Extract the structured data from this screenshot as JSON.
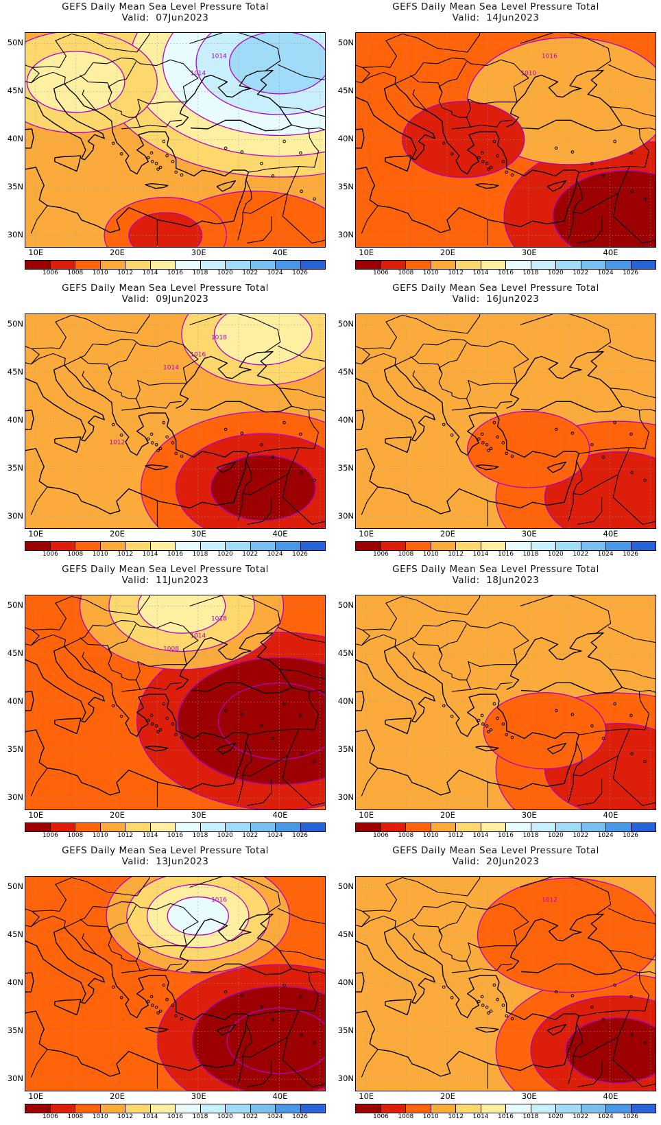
{
  "figure": {
    "title_line": "GEFS Daily Mean Sea Level Pressure Total",
    "valid_prefix": "Valid:",
    "lat_labels": [
      "50N",
      "45N",
      "40N",
      "35N",
      "30N"
    ],
    "lon_labels": [
      "10E",
      "20E",
      "30E",
      "40E"
    ],
    "colorbar": {
      "levels": [
        "1006",
        "1008",
        "1010",
        "1012",
        "1014",
        "1016",
        "1018",
        "1020",
        "1022",
        "1024",
        "1026"
      ],
      "colors": [
        "#9c0000",
        "#dc1e0a",
        "#ff640a",
        "#fbaa3c",
        "#fdd86c",
        "#fef0a0",
        "#e8fbff",
        "#c8f0fc",
        "#a0dcf8",
        "#78c0f0",
        "#4a98e8",
        "#2864d8"
      ]
    },
    "contour_color": "#b000c8"
  },
  "panels": [
    {
      "date": "07Jun2023",
      "labels": [
        "1014",
        "1014"
      ],
      "base": 3,
      "blobs": [
        [
          37,
          28,
          10,
          0.1
        ],
        [
          26,
          30,
          6,
          0.18
        ],
        [
          40,
          48,
          18,
          -0.45
        ],
        [
          15,
          46,
          8,
          -0.18
        ]
      ]
    },
    {
      "date": "14Jun2023",
      "labels": [
        "1016",
        "1010"
      ],
      "base": 2,
      "blobs": [
        [
          42,
          32,
          12,
          0.24
        ],
        [
          35,
          44,
          10,
          -0.1
        ],
        [
          22,
          40,
          6,
          0.05
        ]
      ]
    },
    {
      "date": "09Jun2023",
      "labels": [
        "1018",
        "1016",
        "1014",
        "1012"
      ],
      "base": 3,
      "blobs": [
        [
          38,
          33,
          12,
          0.26
        ],
        [
          38,
          49,
          8,
          -0.22
        ]
      ]
    },
    {
      "date": "16Jun2023",
      "labels": [],
      "base": 3,
      "blobs": [
        [
          41,
          32,
          12,
          0.22
        ],
        [
          30,
          37,
          6,
          0.08
        ]
      ]
    },
    {
      "date": "11Jun2023",
      "labels": [
        "1018",
        "1014",
        "1008"
      ],
      "base": 2,
      "blobs": [
        [
          40,
          38,
          14,
          0.28
        ],
        [
          28,
          50,
          10,
          -0.3
        ]
      ]
    },
    {
      "date": "18Jun2023",
      "labels": [],
      "base": 3,
      "blobs": [
        [
          41,
          33,
          12,
          0.22
        ],
        [
          32,
          37,
          6,
          0.06
        ]
      ]
    },
    {
      "date": "13Jun2023",
      "labels": [
        "1016"
      ],
      "base": 2,
      "blobs": [
        [
          40,
          34,
          12,
          0.28
        ],
        [
          30,
          47,
          9,
          -0.4
        ]
      ]
    },
    {
      "date": "20Jun2023",
      "labels": [
        "1012"
      ],
      "base": 3,
      "blobs": [
        [
          41,
          33,
          12,
          0.26
        ],
        [
          35,
          45,
          9,
          0.08
        ]
      ]
    }
  ]
}
